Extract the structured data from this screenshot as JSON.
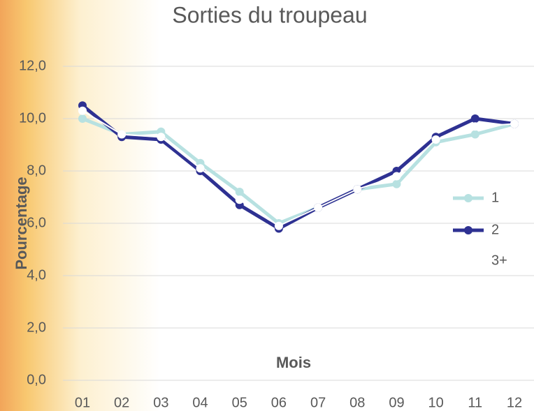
{
  "chart_data": {
    "type": "line",
    "title": "Sorties du troupeau",
    "x_label": "Mois",
    "y_label": "Pourcentage",
    "categories": [
      "01",
      "02",
      "03",
      "04",
      "05",
      "06",
      "07",
      "08",
      "09",
      "10",
      "11",
      "12"
    ],
    "series": [
      {
        "name": "1",
        "color": "#b7e1e1",
        "values": [
          10.0,
          9.4,
          9.5,
          8.3,
          7.2,
          6.0,
          6.6,
          7.3,
          7.5,
          9.1,
          9.4,
          9.8
        ]
      },
      {
        "name": "2",
        "color": "#2e3192",
        "values": [
          10.5,
          9.3,
          9.2,
          8.0,
          6.7,
          5.8,
          6.6,
          7.3,
          8.0,
          9.3,
          10.0,
          9.8
        ]
      },
      {
        "name": "3+",
        "color": "#ffffff",
        "values": [
          10.3,
          9.4,
          9.3,
          8.1,
          6.9,
          5.9,
          6.6,
          7.3,
          7.8,
          9.2,
          9.7,
          9.8
        ]
      }
    ],
    "ylim": [
      0,
      12
    ],
    "yticks": [
      {
        "value": 0,
        "label": "0,0"
      },
      {
        "value": 2,
        "label": "2,0"
      },
      {
        "value": 4,
        "label": "4,0"
      },
      {
        "value": 6,
        "label": "6,0"
      },
      {
        "value": 8,
        "label": "8,0"
      },
      {
        "value": 10,
        "label": "10,0"
      },
      {
        "value": 12,
        "label": "12,0"
      }
    ],
    "grid": true,
    "legend": "right"
  }
}
